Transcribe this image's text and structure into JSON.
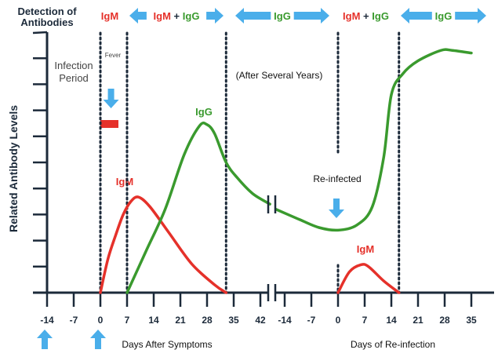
{
  "header": {
    "detection_line1": "Detection of",
    "detection_line2": "Antibodies",
    "phases": [
      {
        "parts": [
          {
            "text": "IgM",
            "color": "red"
          }
        ],
        "arrow": false
      },
      {
        "parts": [
          {
            "text": "IgM",
            "color": "red"
          },
          {
            "text": " + ",
            "color": "dark"
          },
          {
            "text": "IgG",
            "color": "green"
          }
        ],
        "arrow": true
      },
      {
        "parts": [
          {
            "text": "IgG",
            "color": "green"
          }
        ],
        "arrow": true
      },
      {
        "parts": [
          {
            "text": "IgM",
            "color": "red"
          },
          {
            "text": " + ",
            "color": "dark"
          },
          {
            "text": "IgG",
            "color": "green"
          }
        ],
        "arrow": false
      },
      {
        "parts": [
          {
            "text": "IgG",
            "color": "green"
          }
        ],
        "arrow": true
      }
    ]
  },
  "annotations": {
    "infection_line1": "Infection",
    "infection_line2": "Period",
    "fever": "Fever",
    "after_years": "(After Several Years)",
    "reinfected": "Re-infected",
    "igg_label": "IgG",
    "igm_label": "IgM",
    "igm_label2": "IgM"
  },
  "colors": {
    "red": "#e5312a",
    "green": "#3a9a2e",
    "dark": "#1c2a3a",
    "blue": "#4aaeea",
    "gray": "#444444"
  },
  "chart_data": {
    "type": "line",
    "ylabel": "Related Antibody Levels",
    "xlabel_left": "Days After Symptoms",
    "xlabel_right": "Days of Re-infection",
    "x_ticks_left": [
      -14,
      -7,
      0,
      7,
      14,
      21,
      28,
      35,
      42
    ],
    "x_ticks_right": [
      -14,
      -7,
      0,
      7,
      14,
      21,
      28,
      35
    ],
    "y_range": [
      0,
      10
    ],
    "y_tick_count": 10,
    "phase_boundaries_left": [
      0,
      7,
      33
    ],
    "phase_boundaries_right": [
      0,
      16
    ],
    "series": [
      {
        "name": "IgM",
        "segment": "left",
        "color": "red",
        "points": [
          [
            0,
            0
          ],
          [
            2,
            1.3
          ],
          [
            4,
            2.2
          ],
          [
            6,
            3.0
          ],
          [
            8,
            3.5
          ],
          [
            10,
            3.67
          ],
          [
            13,
            3.3
          ],
          [
            18,
            2.3
          ],
          [
            24,
            1.1
          ],
          [
            30,
            0.3
          ],
          [
            33,
            0
          ]
        ]
      },
      {
        "name": "IgG",
        "segment": "left",
        "color": "green",
        "points": [
          [
            7,
            0
          ],
          [
            12,
            1.6
          ],
          [
            17,
            3.2
          ],
          [
            22,
            5.3
          ],
          [
            26,
            6.4
          ],
          [
            28,
            6.45
          ],
          [
            30,
            6.1
          ],
          [
            33,
            5.0
          ],
          [
            36,
            4.4
          ],
          [
            40,
            3.8
          ],
          [
            44.5,
            3.4
          ]
        ]
      },
      {
        "name": "IgG",
        "segment": "right",
        "color": "green",
        "points": [
          [
            -16.3,
            3.2
          ],
          [
            -10,
            2.8
          ],
          [
            -5,
            2.5
          ],
          [
            0,
            2.4
          ],
          [
            5,
            2.6
          ],
          [
            9,
            3.3
          ],
          [
            12,
            5.2
          ],
          [
            14,
            7.6
          ],
          [
            17,
            8.4
          ],
          [
            21,
            8.9
          ],
          [
            27,
            9.3
          ],
          [
            30,
            9.3
          ],
          [
            35,
            9.2
          ]
        ]
      },
      {
        "name": "IgM",
        "segment": "right",
        "color": "red",
        "points": [
          [
            0,
            0
          ],
          [
            3,
            0.8
          ],
          [
            6,
            1.07
          ],
          [
            8,
            1.0
          ],
          [
            12,
            0.45
          ],
          [
            16,
            0
          ]
        ]
      }
    ],
    "markers": {
      "symptom_arrows_days_left": [
        -14,
        0
      ],
      "fever_arrow_day_left": 3,
      "reinfection_arrow_day_right": 0
    }
  }
}
